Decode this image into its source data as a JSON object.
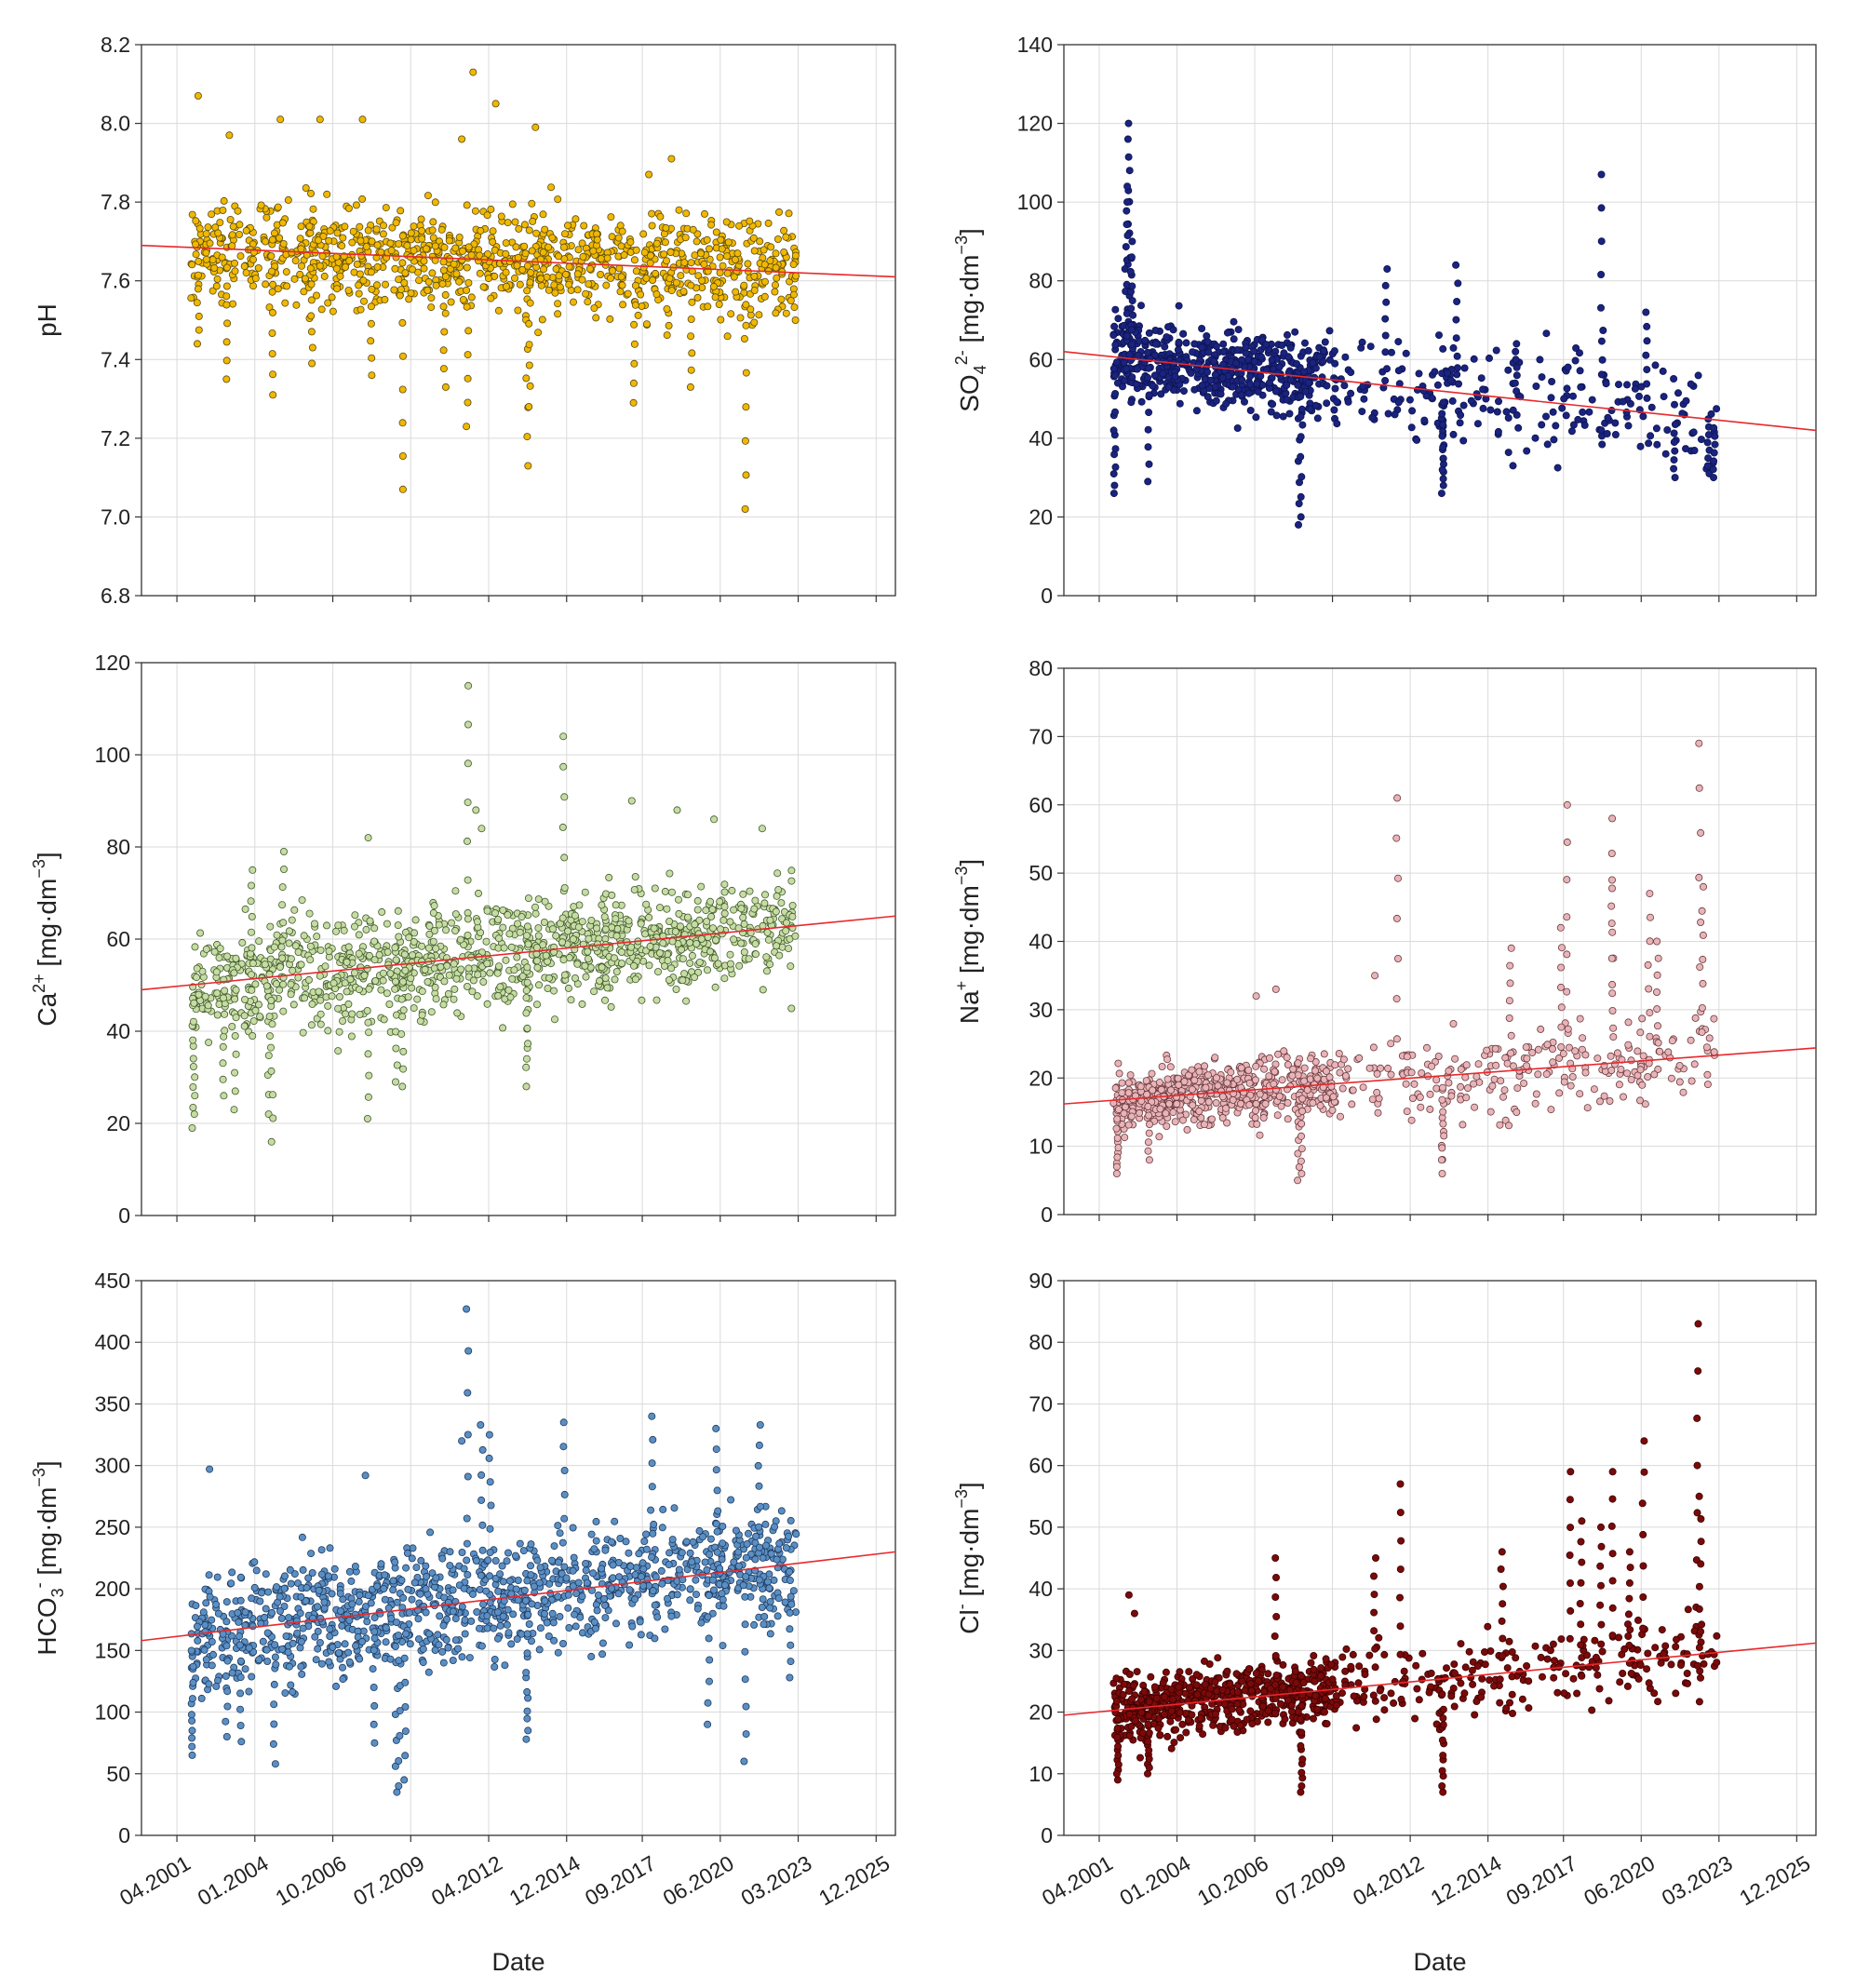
{
  "colors": {
    "trend": "#e8282c",
    "grid": "#dadada",
    "axis": "#333333"
  },
  "chart_data": [
    {
      "id": "ph",
      "type": "scatter",
      "title": "",
      "ylabel": "pH",
      "ylabel_parts": [
        "pH"
      ],
      "xlabel": "",
      "ylim": [
        6.8,
        8.2
      ],
      "yticks": [
        6.8,
        7.0,
        7.2,
        7.4,
        7.6,
        7.8,
        8.0,
        8.2
      ],
      "ytick_labels": [
        "6.8",
        "7.0",
        "7.2",
        "7.4",
        "7.6",
        "7.8",
        "8.0",
        "8.2"
      ],
      "color": "#f0b800",
      "stroke": "#5a4a10",
      "trend": [
        7.69,
        7.61
      ],
      "seed": 11,
      "n": 1050,
      "noise": 0.09,
      "spikes": [
        [
          2003.0,
          7.35
        ],
        [
          2004.6,
          7.31
        ],
        [
          2008.1,
          7.36
        ],
        [
          2009.2,
          7.07
        ],
        [
          2010.7,
          7.33
        ],
        [
          2011.5,
          7.23
        ],
        [
          2013.6,
          7.13
        ],
        [
          2013.7,
          7.28
        ],
        [
          2017.4,
          7.29
        ],
        [
          2021.3,
          7.02
        ],
        [
          2002.0,
          7.44
        ],
        [
          2006.0,
          7.39
        ],
        [
          2019.4,
          7.33
        ]
      ],
      "outliers": [
        [
          2002.0,
          8.07
        ],
        [
          2011.7,
          8.13
        ],
        [
          2012.5,
          8.05
        ],
        [
          2013.9,
          7.99
        ],
        [
          2006.3,
          8.01
        ],
        [
          2004.9,
          8.01
        ],
        [
          2007.8,
          8.01
        ],
        [
          2011.3,
          7.96
        ],
        [
          2017.9,
          7.87
        ],
        [
          2018.7,
          7.91
        ],
        [
          2003.1,
          7.97
        ]
      ],
      "xticks_visible": false
    },
    {
      "id": "so4",
      "type": "scatter",
      "title": "",
      "ylabel": "SO4 2- [mg·dm-3]",
      "ylabel_parts": [
        "SO",
        "4",
        "2-",
        " [mg·dm",
        "−3",
        "]"
      ],
      "xlabel": "",
      "ylim": [
        0,
        140
      ],
      "yticks": [
        0,
        20,
        40,
        60,
        80,
        100,
        120,
        140
      ],
      "ytick_labels": [
        "0",
        "20",
        "40",
        "60",
        "80",
        "100",
        "120",
        "140"
      ],
      "color": "#1a237e",
      "stroke": "#0d1450",
      "trend": [
        62,
        42
      ],
      "seed": 23,
      "n": 780,
      "noise": 7,
      "dense_until": 2009.6,
      "sparse_n": 220,
      "spikes": [
        [
          2002.3,
          120
        ],
        [
          2002.3,
          116
        ],
        [
          2002.25,
          104
        ],
        [
          2002.2,
          100
        ],
        [
          2002.4,
          90
        ],
        [
          2002.4,
          86
        ],
        [
          2001.8,
          26
        ],
        [
          2001.8,
          28
        ],
        [
          2003.0,
          29
        ],
        [
          2008.3,
          18
        ],
        [
          2008.4,
          20
        ],
        [
          2013.4,
          26
        ],
        [
          2013.4,
          28
        ],
        [
          2013.4,
          32
        ],
        [
          2019.0,
          107
        ],
        [
          2013.9,
          84
        ],
        [
          2011.4,
          83
        ],
        [
          2016.0,
          64
        ],
        [
          2020.6,
          72
        ],
        [
          2022.8,
          31
        ],
        [
          2023.0,
          30
        ],
        [
          2021.6,
          30
        ]
      ],
      "outliers": [],
      "xticks_visible": false
    },
    {
      "id": "ca",
      "type": "scatter",
      "title": "",
      "ylabel": "Ca2+ [mg·dm-3]",
      "ylabel_parts": [
        "Ca",
        "",
        "2+",
        " [mg·dm",
        "−3",
        "]"
      ],
      "xlabel": "",
      "ylim": [
        0,
        120
      ],
      "yticks": [
        0,
        20,
        40,
        60,
        80,
        100,
        120
      ],
      "ytick_labels": [
        "0",
        "20",
        "40",
        "60",
        "80",
        "100",
        "120"
      ],
      "color": "#c7dca4",
      "stroke": "#3f5a2a",
      "trend": [
        49,
        65
      ],
      "seed": 37,
      "n": 1150,
      "noise": 8,
      "spikes": [
        [
          2001.8,
          19
        ],
        [
          2001.85,
          22
        ],
        [
          2002.9,
          26
        ],
        [
          2003.3,
          23
        ],
        [
          2004.5,
          22
        ],
        [
          2004.6,
          16
        ],
        [
          2008.0,
          21
        ],
        [
          2009.0,
          29
        ],
        [
          2009.2,
          28
        ],
        [
          2013.6,
          28
        ],
        [
          2013.6,
          34
        ],
        [
          2011.5,
          115
        ],
        [
          2014.9,
          104
        ],
        [
          2003.9,
          75
        ],
        [
          2005.0,
          79
        ]
      ],
      "outliers": [
        [
          2011.8,
          88
        ],
        [
          2017.3,
          90
        ],
        [
          2018.9,
          88
        ],
        [
          2020.2,
          86
        ],
        [
          2021.9,
          84
        ],
        [
          2012.0,
          84
        ],
        [
          2008.0,
          82
        ]
      ],
      "xticks_visible": false
    },
    {
      "id": "na",
      "type": "scatter",
      "title": "",
      "ylabel": "Na+ [mg·dm-3]",
      "ylabel_parts": [
        "Na",
        "",
        "+",
        " [mg·dm",
        "−3",
        "]"
      ],
      "xlabel": "",
      "ylim": [
        0,
        80
      ],
      "yticks": [
        0,
        10,
        20,
        30,
        40,
        50,
        60,
        70,
        80
      ],
      "ytick_labels": [
        "0",
        "10",
        "20",
        "30",
        "40",
        "50",
        "60",
        "70",
        "80"
      ],
      "color": "#e8b4b8",
      "stroke": "#6a3a3e",
      "trend": [
        16.2,
        24.4
      ],
      "seed": 53,
      "n": 780,
      "noise": 3.2,
      "dense_until": 2009.6,
      "sparse_n": 230,
      "spikes": [
        [
          2001.9,
          6
        ],
        [
          2001.9,
          7
        ],
        [
          2003.0,
          8
        ],
        [
          2008.3,
          5
        ],
        [
          2008.4,
          6
        ],
        [
          2013.4,
          6
        ],
        [
          2013.4,
          8
        ],
        [
          2011.8,
          61
        ],
        [
          2017.8,
          60
        ],
        [
          2019.4,
          58
        ],
        [
          2022.5,
          69
        ],
        [
          2022.6,
          48
        ],
        [
          2020.7,
          47
        ],
        [
          2019.4,
          49
        ],
        [
          2021.0,
          40
        ],
        [
          2017.6,
          42
        ],
        [
          2015.8,
          39
        ]
      ],
      "outliers": [
        [
          2007.5,
          33
        ],
        [
          2011.0,
          35
        ],
        [
          2006.8,
          32
        ]
      ],
      "xticks_visible": false
    },
    {
      "id": "hco3",
      "type": "scatter",
      "title": "",
      "ylabel": "HCO3- [mg·dm-3]",
      "ylabel_parts": [
        "HCO",
        "3",
        "-",
        " [mg·dm",
        "−3",
        "]"
      ],
      "xlabel": "Date",
      "ylim": [
        0,
        450
      ],
      "yticks": [
        0,
        50,
        100,
        150,
        200,
        250,
        300,
        350,
        400,
        450
      ],
      "ytick_labels": [
        "0",
        "50",
        "100",
        "150",
        "200",
        "250",
        "300",
        "350",
        "400",
        "450"
      ],
      "color": "#5a8fc4",
      "stroke": "#1f3a5f",
      "trend": [
        158,
        230
      ],
      "seed": 71,
      "n": 1150,
      "noise": 33,
      "spikes": [
        [
          2001.8,
          65
        ],
        [
          2001.8,
          72
        ],
        [
          2003.0,
          80
        ],
        [
          2003.5,
          76
        ],
        [
          2004.7,
          58
        ],
        [
          2008.2,
          75
        ],
        [
          2009.0,
          35
        ],
        [
          2009.1,
          40
        ],
        [
          2009.3,
          45
        ],
        [
          2013.6,
          78
        ],
        [
          2013.6,
          85
        ],
        [
          2011.5,
          427
        ],
        [
          2012.3,
          325
        ],
        [
          2012.0,
          333
        ],
        [
          2014.9,
          335
        ],
        [
          2018.0,
          340
        ],
        [
          2020.3,
          330
        ],
        [
          2021.8,
          333
        ],
        [
          2020.0,
          90
        ],
        [
          2021.3,
          60
        ],
        [
          2022.9,
          128
        ]
      ],
      "outliers": [
        [
          2002.4,
          297
        ],
        [
          2007.9,
          292
        ],
        [
          2011.3,
          320
        ]
      ],
      "xticks_visible": true
    },
    {
      "id": "cl",
      "type": "scatter",
      "title": "",
      "ylabel": "Cl- [mg·dm-3]",
      "ylabel_parts": [
        "Cl",
        "",
        "-",
        " [mg·dm",
        "−3",
        "]"
      ],
      "xlabel": "Date",
      "ylim": [
        0,
        90
      ],
      "yticks": [
        0,
        10,
        20,
        30,
        40,
        50,
        60,
        70,
        80,
        90
      ],
      "ytick_labels": [
        "0",
        "10",
        "20",
        "30",
        "40",
        "50",
        "60",
        "70",
        "80",
        "90"
      ],
      "color": "#7a0a0a",
      "stroke": "#3a0000",
      "trend": [
        19.5,
        31.2
      ],
      "seed": 97,
      "n": 820,
      "noise": 3.6,
      "dense_until": 2009.6,
      "sparse_n": 240,
      "spikes": [
        [
          2001.9,
          9
        ],
        [
          2001.9,
          10
        ],
        [
          2003.0,
          10
        ],
        [
          2003.0,
          11
        ],
        [
          2008.4,
          7
        ],
        [
          2008.4,
          8
        ],
        [
          2013.4,
          7
        ],
        [
          2013.4,
          8
        ],
        [
          2007.5,
          45
        ],
        [
          2011.0,
          45
        ],
        [
          2011.9,
          57
        ],
        [
          2015.5,
          46
        ],
        [
          2017.9,
          59
        ],
        [
          2019.4,
          59
        ],
        [
          2020.5,
          64
        ],
        [
          2020.0,
          46
        ],
        [
          2022.4,
          83
        ],
        [
          2022.5,
          55
        ],
        [
          2018.3,
          51
        ],
        [
          2019.0,
          50
        ]
      ],
      "outliers": [
        [
          2002.3,
          39
        ],
        [
          2002.5,
          36
        ]
      ],
      "xticks_visible": true
    }
  ],
  "x_axis": {
    "range": [
      2000.0,
      2026.6
    ],
    "ticks": [
      2001.25,
      2004.0,
      2006.75,
      2009.5,
      2012.25,
      2015.0,
      2017.67,
      2020.42,
      2023.17,
      2025.92
    ],
    "tick_labels": [
      "04.2001",
      "01.2004",
      "10.2006",
      "07.2009",
      "04.2012",
      "12.2014",
      "09.2017",
      "06.2020",
      "03.2023",
      "12.2025"
    ],
    "label": "Date"
  }
}
